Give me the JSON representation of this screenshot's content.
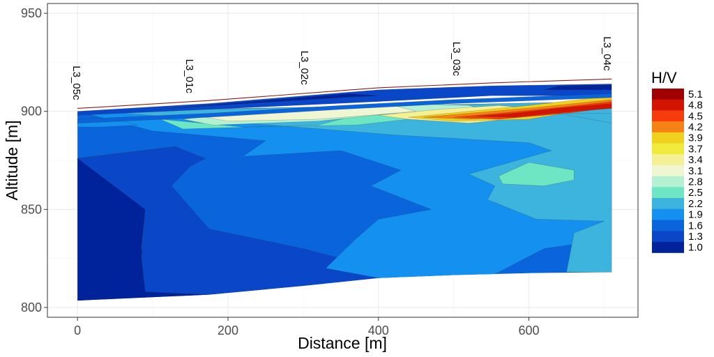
{
  "chart_data": {
    "type": "heatmap",
    "subtype": "filled-contour cross-section",
    "xlabel": "Distance [m]",
    "ylabel": "Altitude [m]",
    "xlim": [
      -40,
      745
    ],
    "ylim": [
      795,
      955
    ],
    "x_ticks": [
      0,
      200,
      400,
      600
    ],
    "y_ticks": [
      800,
      850,
      900,
      950
    ],
    "grid": true,
    "legend": {
      "title": "H/V",
      "placement": "right",
      "levels": [
        "1.0",
        "1.3",
        "1.6",
        "1.9",
        "2.2",
        "2.5",
        "2.8",
        "3.1",
        "3.4",
        "3.7",
        "3.9",
        "4.2",
        "4.5",
        "4.8",
        "5.1"
      ],
      "colors": [
        "#00239c",
        "#0a46c8",
        "#0a64dc",
        "#1490f0",
        "#3cb4de",
        "#6ee6c3",
        "#b4f0d2",
        "#f0f5d2",
        "#f5f096",
        "#f0ea3c",
        "#f0d21e",
        "#f58214",
        "#f53c0a",
        "#d21400",
        "#a00000"
      ]
    },
    "stations": [
      {
        "name": "L3_05c",
        "x": 0
      },
      {
        "name": "L3_01c",
        "x": 150
      },
      {
        "name": "L3_02c",
        "x": 303
      },
      {
        "name": "L3_03c",
        "x": 505
      },
      {
        "name": "L3_04c",
        "x": 705
      }
    ],
    "topography": {
      "x": [
        0,
        175,
        400,
        550,
        710
      ],
      "y": [
        901.5,
        905.5,
        912,
        914.5,
        916.5
      ]
    },
    "section_bounds": {
      "x": [
        0,
        710
      ],
      "top": [
        [
          0,
          900.5
        ],
        [
          175,
          904.5
        ],
        [
          400,
          911
        ],
        [
          550,
          913.5
        ],
        [
          710,
          915
        ]
      ],
      "bottom": [
        [
          0,
          803.5
        ],
        [
          175,
          806.5
        ],
        [
          300,
          811
        ],
        [
          400,
          815
        ],
        [
          500,
          816.5
        ],
        [
          600,
          817.5
        ],
        [
          710,
          818
        ]
      ]
    },
    "regions": [
      {
        "level": "1.6",
        "points": [
          [
            0,
            899
          ],
          [
            710,
            899
          ],
          [
            710,
            818
          ],
          [
            600,
            817.5
          ],
          [
            500,
            816.5
          ],
          [
            400,
            815
          ],
          [
            300,
            811
          ],
          [
            175,
            806.5
          ],
          [
            0,
            803.5
          ]
        ]
      },
      {
        "level": "1.0",
        "points": [
          [
            0,
            876
          ],
          [
            130,
            882
          ],
          [
            90,
            850
          ],
          [
            85,
            830
          ],
          [
            110,
            815
          ],
          [
            175,
            806.5
          ],
          [
            0,
            803.5
          ]
        ]
      },
      {
        "level": "1.3",
        "points": [
          [
            0,
            876
          ],
          [
            130,
            882
          ],
          [
            170,
            876
          ],
          [
            150,
            872
          ],
          [
            125,
            862
          ],
          [
            175,
            840
          ],
          [
            300,
            830
          ],
          [
            400,
            820
          ],
          [
            420,
            815
          ],
          [
            300,
            811
          ],
          [
            175,
            806.5
          ],
          [
            90,
            808
          ],
          [
            85,
            825
          ],
          [
            90,
            850
          ]
        ]
      },
      {
        "level": "1.9",
        "points": [
          [
            0,
            900
          ],
          [
            710,
            905
          ],
          [
            710,
            835
          ],
          [
            620,
            830
          ],
          [
            520,
            810
          ],
          [
            400,
            815
          ],
          [
            330,
            820
          ],
          [
            370,
            835
          ],
          [
            400,
            845
          ],
          [
            470,
            850
          ],
          [
            390,
            862
          ],
          [
            430,
            870
          ],
          [
            350,
            880
          ],
          [
            220,
            877
          ],
          [
            250,
            885
          ],
          [
            100,
            890
          ]
        ]
      },
      {
        "level": "2.2",
        "points": [
          [
            30,
            900
          ],
          [
            710,
            905
          ],
          [
            710,
            818
          ],
          [
            650,
            818
          ],
          [
            660,
            838
          ],
          [
            700,
            844
          ],
          [
            610,
            845
          ],
          [
            545,
            855
          ],
          [
            555,
            862
          ],
          [
            520,
            868
          ],
          [
            630,
            880
          ],
          [
            600,
            884
          ],
          [
            420,
            888
          ]
        ]
      },
      {
        "level": "2.5",
        "points": [
          [
            560,
            867
          ],
          [
            600,
            874
          ],
          [
            660,
            870
          ],
          [
            660,
            865
          ],
          [
            620,
            862
          ],
          [
            565,
            863
          ]
        ]
      },
      {
        "level": "2.5",
        "points": [
          [
            110,
            896
          ],
          [
            140,
            891
          ],
          [
            320,
            893
          ],
          [
            380,
            899
          ],
          [
            470,
            905
          ],
          [
            540,
            899
          ],
          [
            530,
            894
          ],
          [
            600,
            899
          ],
          [
            440,
            896
          ],
          [
            370,
            893
          ],
          [
            220,
            892
          ]
        ]
      },
      {
        "level": "2.8",
        "points": [
          [
            140,
            896
          ],
          [
            180,
            893
          ],
          [
            320,
            895
          ],
          [
            420,
            899
          ],
          [
            480,
            898
          ],
          [
            530,
            898
          ],
          [
            560,
            899
          ],
          [
            520,
            903
          ],
          [
            420,
            904
          ],
          [
            320,
            902
          ],
          [
            220,
            899
          ]
        ]
      },
      {
        "level": "3.1",
        "points": [
          [
            170,
            897
          ],
          [
            200,
            895
          ],
          [
            320,
            896
          ],
          [
            420,
            899
          ],
          [
            450,
            900
          ],
          [
            420,
            903
          ],
          [
            330,
            901
          ],
          [
            230,
            899
          ]
        ]
      },
      {
        "level": "3.4",
        "points": [
          [
            400,
            898
          ],
          [
            440,
            896
          ],
          [
            520,
            894
          ],
          [
            600,
            897
          ],
          [
            620,
            901
          ],
          [
            560,
            903
          ],
          [
            480,
            901
          ]
        ]
      },
      {
        "level": "3.9",
        "points": [
          [
            440,
            897
          ],
          [
            500,
            895
          ],
          [
            600,
            896
          ],
          [
            710,
            903
          ],
          [
            710,
            908
          ],
          [
            600,
            903
          ],
          [
            520,
            900
          ]
        ]
      },
      {
        "level": "4.2",
        "points": [
          [
            460,
            897
          ],
          [
            520,
            896
          ],
          [
            620,
            898
          ],
          [
            710,
            903
          ],
          [
            710,
            906
          ],
          [
            610,
            902
          ],
          [
            520,
            899
          ]
        ]
      },
      {
        "level": "4.5",
        "points": [
          [
            500,
            897
          ],
          [
            560,
            896
          ],
          [
            650,
            899
          ],
          [
            710,
            902
          ],
          [
            710,
            905
          ],
          [
            640,
            902
          ],
          [
            560,
            899
          ]
        ]
      },
      {
        "level": "4.8",
        "points": [
          [
            530,
            897.5
          ],
          [
            580,
            897
          ],
          [
            660,
            900
          ],
          [
            710,
            901.5
          ],
          [
            710,
            904
          ],
          [
            650,
            902
          ],
          [
            580,
            899
          ]
        ]
      },
      {
        "level": "1.3",
        "points": [
          [
            0,
            900
          ],
          [
            175,
            904
          ],
          [
            400,
            911
          ],
          [
            550,
            913
          ],
          [
            710,
            914
          ],
          [
            710,
            908
          ],
          [
            550,
            908
          ],
          [
            400,
            905
          ],
          [
            175,
            901
          ],
          [
            0,
            898
          ]
        ]
      },
      {
        "level": "1.0",
        "points": [
          [
            120,
            901.5
          ],
          [
            350,
            907
          ],
          [
            400,
            908
          ],
          [
            360,
            909
          ],
          [
            200,
            904
          ]
        ]
      },
      {
        "level": "1.0",
        "points": [
          [
            620,
            911
          ],
          [
            710,
            911
          ],
          [
            710,
            913.5
          ],
          [
            640,
            913
          ]
        ]
      },
      {
        "level": "1.6",
        "points": [
          [
            0,
            896
          ],
          [
            175,
            899
          ],
          [
            350,
            903
          ],
          [
            500,
            906
          ],
          [
            710,
            909
          ],
          [
            710,
            907
          ],
          [
            500,
            904
          ],
          [
            350,
            901
          ],
          [
            175,
            897
          ],
          [
            0,
            894
          ]
        ]
      },
      {
        "level": "1.9",
        "points": [
          [
            0,
            894
          ],
          [
            60,
            895
          ],
          [
            80,
            893
          ],
          [
            30,
            892
          ],
          [
            0,
            892
          ]
        ]
      },
      {
        "level": "2.2",
        "points": [
          [
            710,
            899
          ],
          [
            640,
            899
          ],
          [
            710,
            894
          ]
        ]
      }
    ]
  }
}
